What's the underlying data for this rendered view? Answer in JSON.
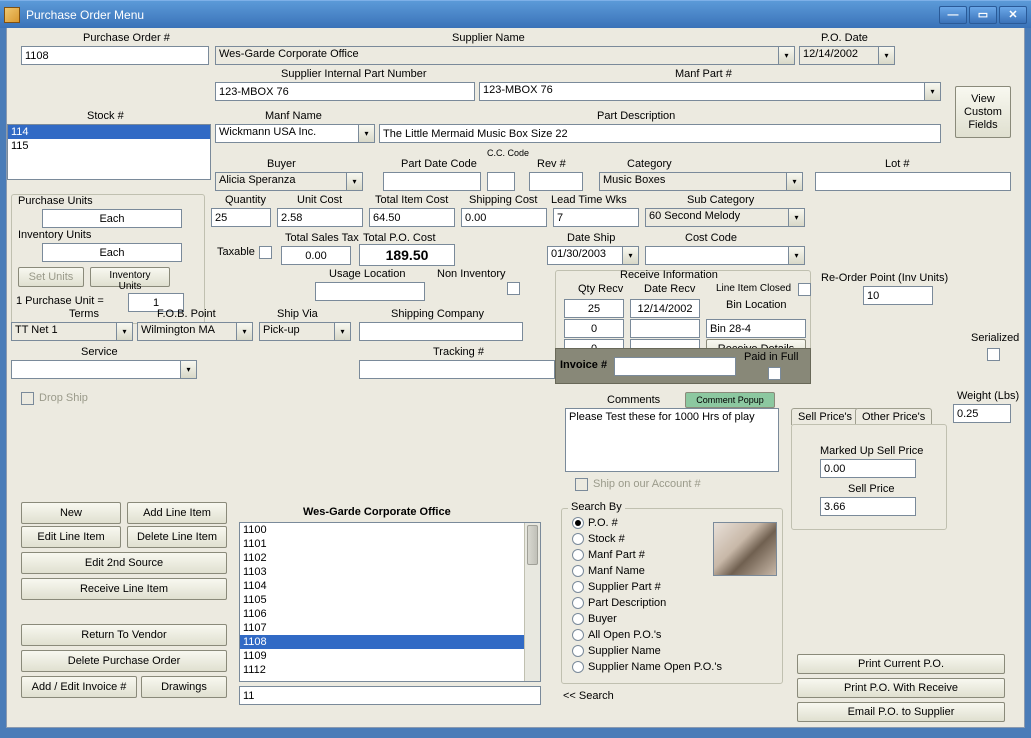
{
  "window": {
    "title": "Purchase Order Menu"
  },
  "top": {
    "po_num_label": "Purchase Order #",
    "po_num": "1108",
    "supplier_name_label": "Supplier Name",
    "supplier_name": "Wes-Garde Corporate Office",
    "po_date_label": "P.O. Date",
    "po_date": "12/14/2002",
    "sipn_label": "Supplier Internal Part Number",
    "sipn": "123-MBOX 76",
    "manf_part_label": "Manf Part #",
    "manf_part": "123-MBOX 76",
    "view_custom_fields": "View\nCustom\nFields"
  },
  "stock": {
    "label": "Stock #",
    "items": [
      "114",
      "115"
    ],
    "selected": 0
  },
  "middle": {
    "manf_name_label": "Manf Name",
    "manf_name": "Wickmann USA Inc.",
    "part_desc_label": "Part Description",
    "part_desc": "The Little Mermaid Music Box Size 22",
    "buyer_label": "Buyer",
    "buyer": "Alicia Speranza",
    "part_date_code_label": "Part Date Code",
    "cc_code_label": "C.C. Code",
    "rev_label": "Rev #",
    "category_label": "Category",
    "category": "Music Boxes",
    "lot_label": "Lot #"
  },
  "units": {
    "purchase_units_label": "Purchase Units",
    "purchase_units": "Each",
    "inventory_units_label": "Inventory Units",
    "inventory_units": "Each",
    "set_units_btn": "Set Units",
    "inventory_units_btn": "Inventory Units",
    "one_pu_equals": "1 Purchase Unit =",
    "one_pu_value": "1"
  },
  "costs": {
    "quantity_label": "Quantity",
    "quantity": "25",
    "unit_cost_label": "Unit Cost",
    "unit_cost": "2.58",
    "total_item_cost_label": "Total Item Cost",
    "total_item_cost": "64.50",
    "shipping_cost_label": "Shipping Cost",
    "shipping_cost": "0.00",
    "lead_time_label": "Lead Time Wks",
    "lead_time": "7",
    "sub_category_label": "Sub Category",
    "sub_category": "60 Second Melody",
    "taxable_label": "Taxable",
    "total_sales_tax_label": "Total Sales Tax",
    "total_sales_tax": "0.00",
    "total_po_cost_label": "Total P.O. Cost",
    "total_po_cost": "189.50",
    "date_ship_label": "Date Ship",
    "date_ship": "01/30/2003",
    "cost_code_label": "Cost Code"
  },
  "shipping": {
    "terms_label": "Terms",
    "terms": "TT Net 1",
    "fob_label": "F.O.B. Point",
    "fob": "Wilmington MA",
    "ship_via_label": "Ship Via",
    "ship_via": "Pick-up",
    "shipping_company_label": "Shipping Company",
    "usage_location_label": "Usage Location",
    "non_inventory_label": "Non Inventory",
    "service_label": "Service",
    "tracking_label": "Tracking #",
    "drop_ship_label": "Drop Ship"
  },
  "receive": {
    "title": "Receive Information",
    "qty_recv_label": "Qty Recv",
    "date_recv_label": "Date Recv",
    "line_item_closed_label": "Line Item Closed",
    "bin_location_label": "Bin Location",
    "qty1": "25",
    "date1": "12/14/2002",
    "qty2": "0",
    "qty3": "0",
    "bin": "Bin 28-4",
    "receive_details_btn": "Receive Details",
    "invoice_label": "Invoice #",
    "paid_in_full_label": "Paid in Full"
  },
  "reorder": {
    "label": "Re-Order Point (Inv Units)",
    "value": "10",
    "serialized_label": "Serialized"
  },
  "comments": {
    "label": "Comments",
    "popup_btn": "Comment Popup",
    "text": "Please Test these for 1000 Hrs of play",
    "ship_on_account_label": "Ship on our Account #"
  },
  "prices": {
    "sell_tab": "Sell Price's",
    "other_tab": "Other Price's",
    "marked_up_label": "Marked Up Sell Price",
    "marked_up": "0.00",
    "sell_price_label": "Sell Price",
    "sell_price": "3.66",
    "weight_label": "Weight (Lbs)",
    "weight": "0.25"
  },
  "actions": {
    "new_btn": "New",
    "add_line_item_btn": "Add Line Item",
    "edit_line_item_btn": "Edit Line Item",
    "delete_line_item_btn": "Delete Line Item",
    "edit_2nd_source_btn": "Edit 2nd Source",
    "receive_line_item_btn": "Receive Line Item",
    "return_vendor_btn": "Return To Vendor",
    "delete_po_btn": "Delete Purchase Order",
    "add_edit_invoice_btn": "Add / Edit Invoice #",
    "drawings_btn": "Drawings"
  },
  "po_list": {
    "title": "Wes-Garde Corporate Office",
    "items": [
      "1100",
      "1101",
      "1102",
      "1103",
      "1104",
      "1105",
      "1106",
      "1107",
      "1108",
      "1109",
      "1112"
    ],
    "selected": 8,
    "filter": "11"
  },
  "search": {
    "title": "Search By",
    "options": [
      "P.O. #",
      "Stock #",
      "Manf Part #",
      "Manf Name",
      "Supplier Part #",
      "Part Description",
      "Buyer",
      "All Open P.O.'s",
      "Supplier Name",
      "Supplier Name Open P.O.'s"
    ],
    "selected": 0,
    "back_label": "<< Search"
  },
  "print": {
    "print_current": "Print Current P.O.",
    "print_receive": "Print P.O. With Receive",
    "email_supplier": "Email P.O. to Supplier"
  }
}
